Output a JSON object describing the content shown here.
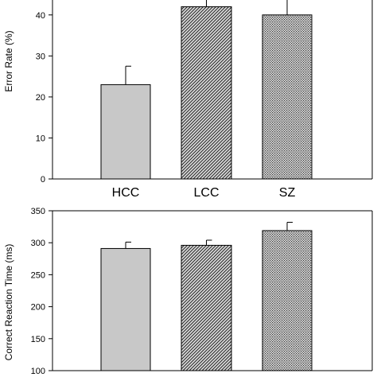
{
  "colors": {
    "bar_fill": "#c8c8c8",
    "stroke": "#000000",
    "background": "#ffffff"
  },
  "chart_data": [
    {
      "type": "bar",
      "categories": [
        "HCC",
        "LCC",
        "SZ"
      ],
      "values": [
        23,
        42,
        40
      ],
      "error": [
        4.5,
        4.5,
        4
      ],
      "patterns": [
        "solid-gray",
        "diagonal-hatch",
        "crosshatch"
      ],
      "ylabel": "Error Rate (%)",
      "xlabel": "",
      "ylim": [
        0,
        45
      ],
      "yticks": [
        0,
        10,
        20,
        30,
        40
      ],
      "show_category_labels": true
    },
    {
      "type": "bar",
      "categories": [
        "HCC",
        "LCC",
        "SZ"
      ],
      "values": [
        291,
        296,
        319
      ],
      "error": [
        10,
        8,
        13
      ],
      "patterns": [
        "solid-gray",
        "diagonal-hatch",
        "crosshatch"
      ],
      "ylabel": "Correct Reaction Time (ms)",
      "xlabel": "",
      "ylim": [
        100,
        350
      ],
      "yticks": [
        100,
        150,
        200,
        250,
        300,
        350
      ],
      "show_category_labels": false
    }
  ]
}
